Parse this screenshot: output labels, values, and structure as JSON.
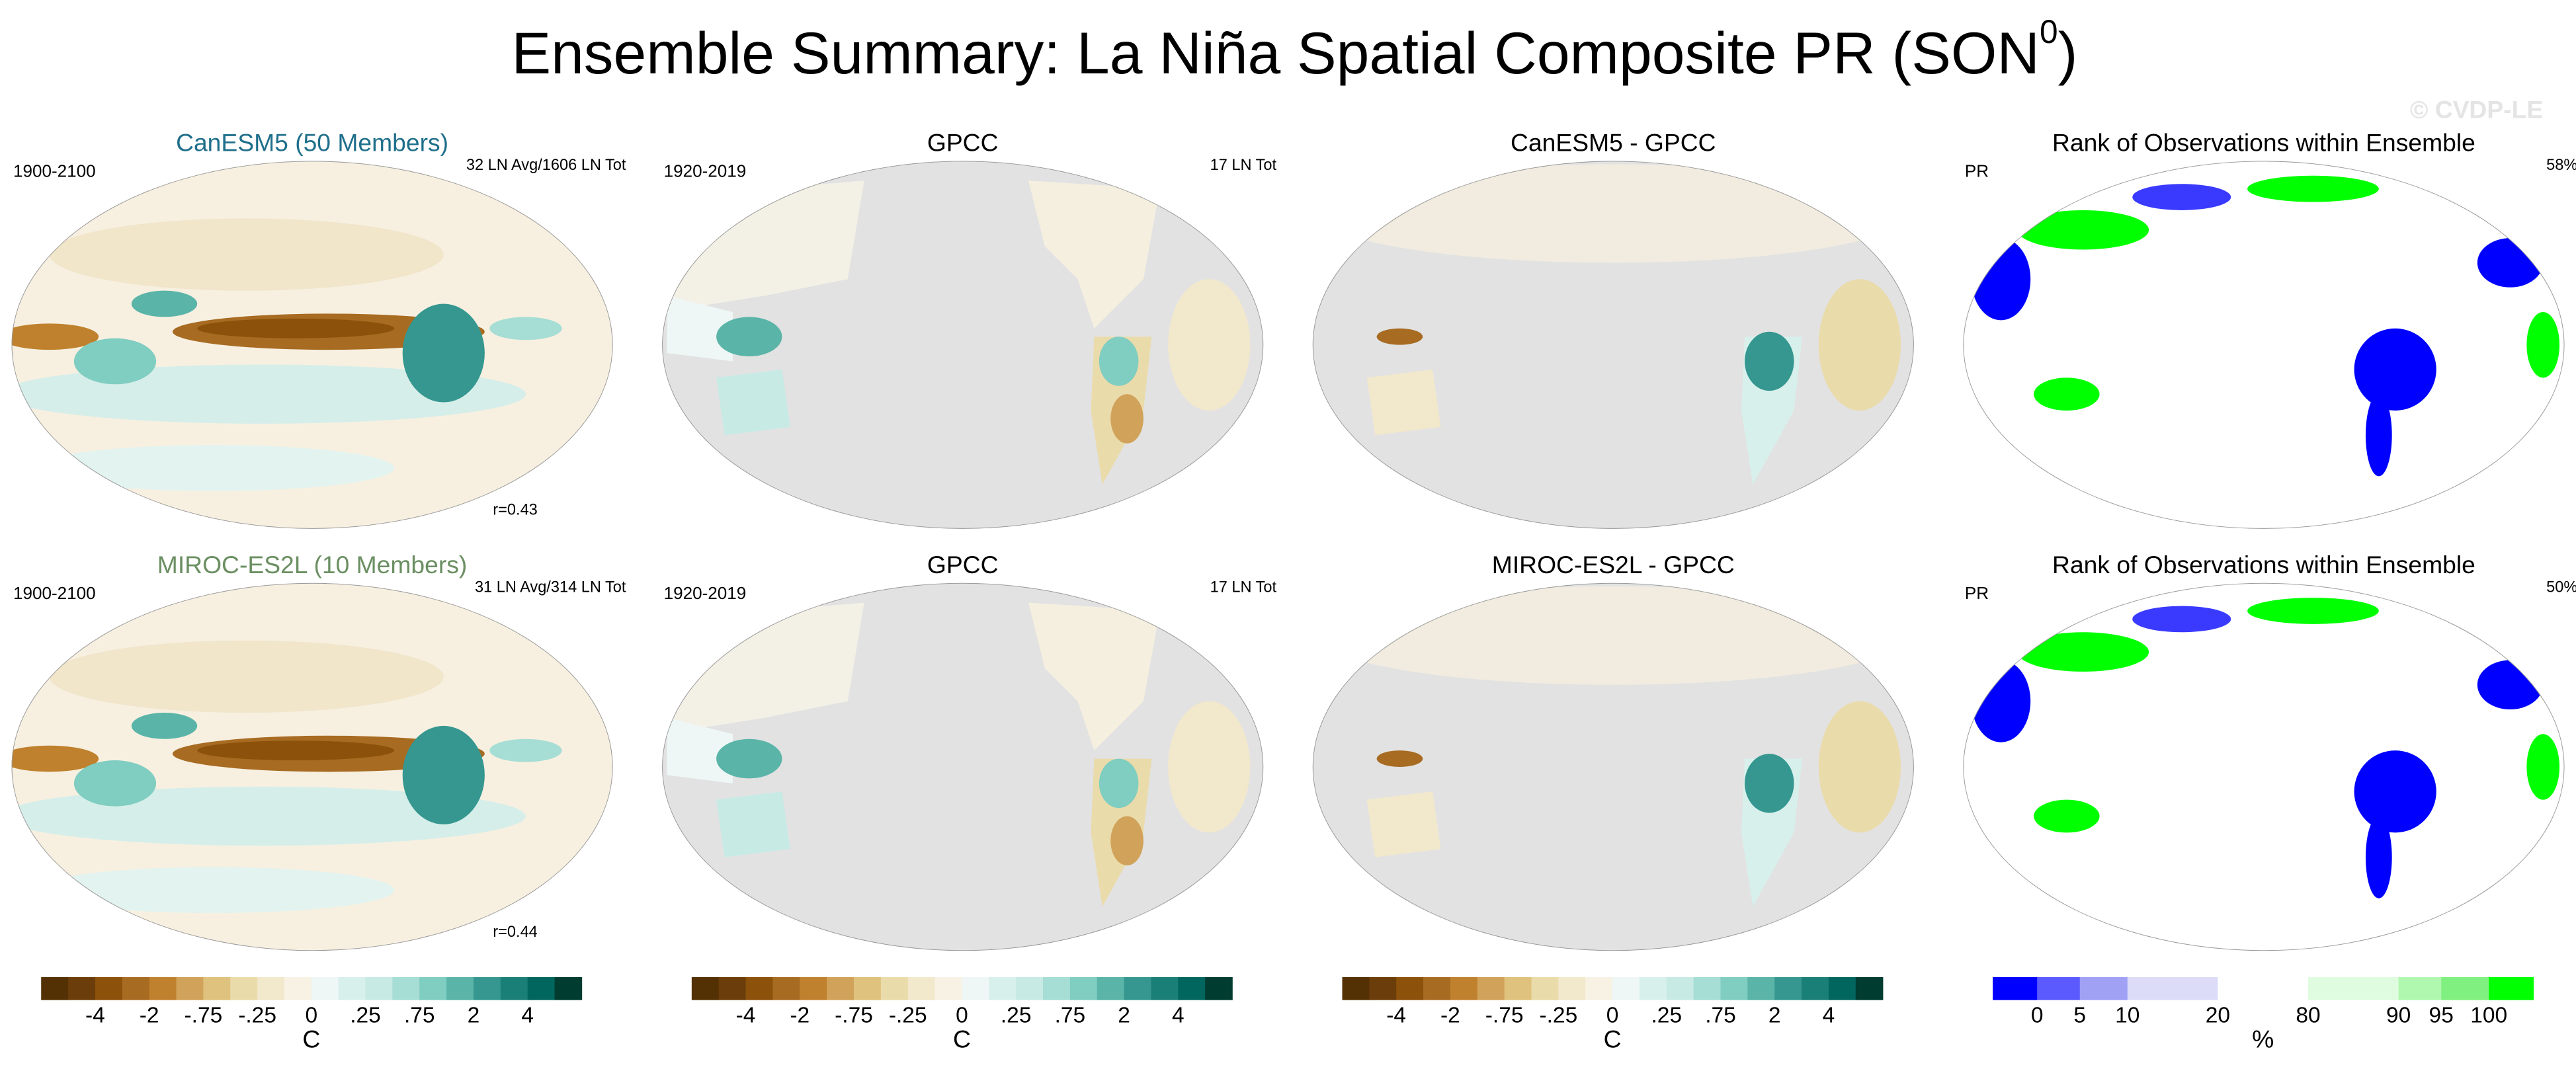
{
  "title": {
    "text": "Ensemble Summary: La Niña Spatial Composite PR (SON",
    "superscript": "0",
    "closing": ")"
  },
  "watermark": "© CVDP-LE",
  "rows": [
    {
      "panels": [
        {
          "title": "CanESM5 (50 Members)",
          "title_color": "#1f6f8b",
          "left_label": "1900-2100",
          "right_label": "32 LN Avg/1606 LN Tot",
          "corner_note": "r=0.43"
        },
        {
          "title": "GPCC",
          "title_color": "#000000",
          "left_label": "1920-2019",
          "right_label": "17 LN Tot"
        },
        {
          "title": "CanESM5 - GPCC",
          "title_color": "#000000"
        },
        {
          "title": "Rank of Observations within Ensemble",
          "title_color": "#000000",
          "left_label": "PR",
          "right_label": "58%"
        }
      ]
    },
    {
      "panels": [
        {
          "title": "MIROC-ES2L (10 Members)",
          "title_color": "#6b8f62",
          "left_label": "1900-2100",
          "right_label": "31 LN Avg/314 LN Tot",
          "corner_note": "r=0.44"
        },
        {
          "title": "GPCC",
          "title_color": "#000000",
          "left_label": "1920-2019",
          "right_label": "17 LN Tot"
        },
        {
          "title": "MIROC-ES2L - GPCC",
          "title_color": "#000000"
        },
        {
          "title": "Rank of Observations within Ensemble",
          "title_color": "#000000",
          "left_label": "PR",
          "right_label": "50%"
        }
      ]
    }
  ],
  "colorbars": [
    {
      "colors": [
        "#543005",
        "#6b3d0a",
        "#8c510a",
        "#a86b22",
        "#bf812d",
        "#d1a35a",
        "#dfc27d",
        "#eadbab",
        "#f2e8cc",
        "#f8f2e4",
        "#eef7f5",
        "#d8f0ec",
        "#c7eae5",
        "#a6ddd4",
        "#80cdc1",
        "#5ab4a8",
        "#35978f",
        "#1a7f77",
        "#01665e",
        "#003c30"
      ],
      "tick_labels": [
        "-4",
        "-2",
        "-.75",
        "-.25",
        "0",
        ".25",
        ".75",
        "2",
        "4"
      ],
      "unit": "C"
    },
    {
      "colors": [
        "#543005",
        "#6b3d0a",
        "#8c510a",
        "#a86b22",
        "#bf812d",
        "#d1a35a",
        "#dfc27d",
        "#eadbab",
        "#f2e8cc",
        "#f8f2e4",
        "#eef7f5",
        "#d8f0ec",
        "#c7eae5",
        "#a6ddd4",
        "#80cdc1",
        "#5ab4a8",
        "#35978f",
        "#1a7f77",
        "#01665e",
        "#003c30"
      ],
      "tick_labels": [
        "-4",
        "-2",
        "-.75",
        "-.25",
        "0",
        ".25",
        ".75",
        "2",
        "4"
      ],
      "unit": "C"
    },
    {
      "colors": [
        "#543005",
        "#6b3d0a",
        "#8c510a",
        "#a86b22",
        "#bf812d",
        "#d1a35a",
        "#dfc27d",
        "#eadbab",
        "#f2e8cc",
        "#f8f2e4",
        "#eef7f5",
        "#d8f0ec",
        "#c7eae5",
        "#a6ddd4",
        "#80cdc1",
        "#5ab4a8",
        "#35978f",
        "#1a7f77",
        "#01665e",
        "#003c30"
      ],
      "tick_labels": [
        "-4",
        "-2",
        "-.75",
        "-.25",
        "0",
        ".25",
        ".75",
        "2",
        "4"
      ],
      "unit": "C"
    },
    {
      "colors": [
        "#0000ff",
        "#5a5aff",
        "#a0a0f5",
        "#dcdcf8",
        "#ffffff",
        "#e0fce0",
        "#b0f7b0",
        "#80f080",
        "#00ff00"
      ],
      "tick_labels": [
        "0",
        "5",
        "10",
        "20",
        "80",
        "90",
        "95",
        "100"
      ],
      "unit": "%"
    }
  ]
}
